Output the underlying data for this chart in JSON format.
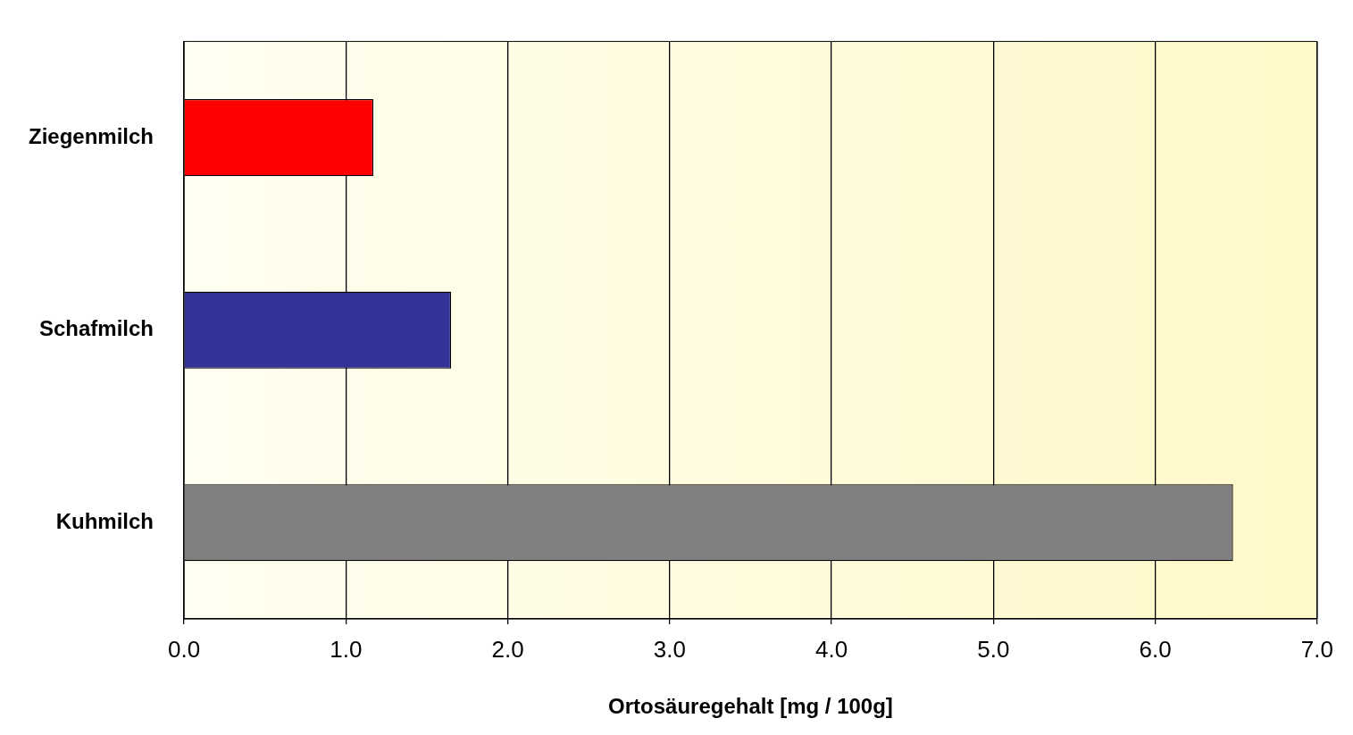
{
  "chart_data": {
    "type": "bar",
    "orientation": "horizontal",
    "xlabel": "Ortosäuregehalt [mg / 100g]",
    "categories": [
      "Ziegenmilch",
      "Schafmilch",
      "Kuhmilch"
    ],
    "values": [
      1.17,
      1.65,
      6.48
    ],
    "colors": [
      "#ff0000",
      "#333399",
      "#808080"
    ],
    "xlim": [
      0,
      7
    ],
    "xticks": [
      {
        "value": 0,
        "label": "0.0"
      },
      {
        "value": 1,
        "label": "1.0"
      },
      {
        "value": 2,
        "label": "2.0"
      },
      {
        "value": 3,
        "label": "3.0"
      },
      {
        "value": 4,
        "label": "4.0"
      },
      {
        "value": 5,
        "label": "5.0"
      },
      {
        "value": 6,
        "label": "6.0"
      },
      {
        "value": 7,
        "label": "7.0"
      }
    ],
    "grid": "x",
    "legend": false
  }
}
